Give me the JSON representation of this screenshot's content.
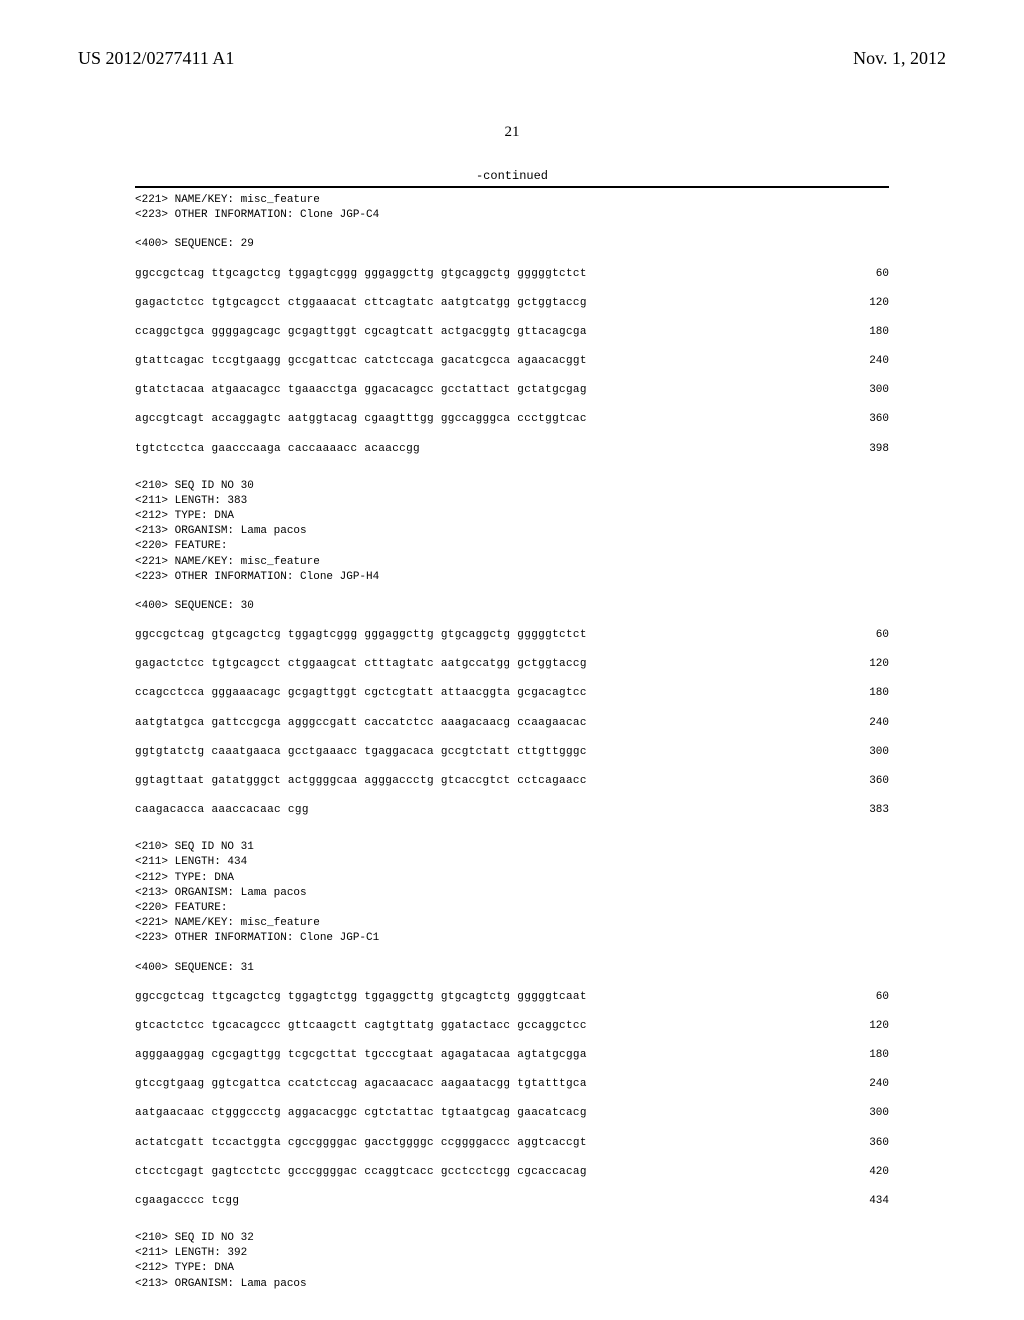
{
  "header": {
    "publication_number": "US 2012/0277411 A1",
    "publication_date": "Nov. 1, 2012"
  },
  "page_number": "21",
  "continued_label": "-continued",
  "blocks": [
    {
      "type": "meta_short",
      "lines": [
        "<221> NAME/KEY: misc_feature",
        "<223> OTHER INFORMATION: Clone JGP-C4"
      ]
    },
    {
      "type": "query",
      "text": "<400> SEQUENCE: 29"
    },
    {
      "type": "seq",
      "rows": [
        {
          "seq": "ggccgctcag ttgcagctcg tggagtcggg gggaggcttg gtgcaggctg gggggtctct",
          "n": "60"
        },
        {
          "seq": "gagactctcc tgtgcagcct ctggaaacat cttcagtatc aatgtcatgg gctggtaccg",
          "n": "120"
        },
        {
          "seq": "ccaggctgca ggggagcagc gcgagttggt cgcagtcatt actgacggtg gttacagcga",
          "n": "180"
        },
        {
          "seq": "gtattcagac tccgtgaagg gccgattcac catctccaga gacatcgcca agaacacggt",
          "n": "240"
        },
        {
          "seq": "gtatctacaa atgaacagcc tgaaacctga ggacacagcc gcctattact gctatgcgag",
          "n": "300"
        },
        {
          "seq": "agccgtcagt accaggagtc aatggtacag cgaagtttgg ggccagggca ccctggtcac",
          "n": "360"
        },
        {
          "seq": "tgtctcctca gaacccaaga caccaaaacc acaaccgg",
          "n": "398"
        }
      ]
    },
    {
      "type": "meta",
      "lines": [
        "<210> SEQ ID NO 30",
        "<211> LENGTH: 383",
        "<212> TYPE: DNA",
        "<213> ORGANISM: Lama pacos",
        "<220> FEATURE:",
        "<221> NAME/KEY: misc_feature",
        "<223> OTHER INFORMATION: Clone JGP-H4"
      ]
    },
    {
      "type": "query",
      "text": "<400> SEQUENCE: 30"
    },
    {
      "type": "seq",
      "rows": [
        {
          "seq": "ggccgctcag gtgcagctcg tggagtcggg gggaggcttg gtgcaggctg gggggtctct",
          "n": "60"
        },
        {
          "seq": "gagactctcc tgtgcagcct ctggaagcat ctttagtatc aatgccatgg gctggtaccg",
          "n": "120"
        },
        {
          "seq": "ccagcctcca gggaaacagc gcgagttggt cgctcgtatt attaacggta gcgacagtcc",
          "n": "180"
        },
        {
          "seq": "aatgtatgca gattccgcga agggccgatt caccatctcc aaagacaacg ccaagaacac",
          "n": "240"
        },
        {
          "seq": "ggtgtatctg caaatgaaca gcctgaaacc tgaggacaca gccgtctatt cttgttgggc",
          "n": "300"
        },
        {
          "seq": "ggtagttaat gatatgggct actggggcaa agggaccctg gtcaccgtct cctcagaacc",
          "n": "360"
        },
        {
          "seq": "caagacacca aaaccacaac cgg",
          "n": "383"
        }
      ]
    },
    {
      "type": "meta",
      "lines": [
        "<210> SEQ ID NO 31",
        "<211> LENGTH: 434",
        "<212> TYPE: DNA",
        "<213> ORGANISM: Lama pacos",
        "<220> FEATURE:",
        "<221> NAME/KEY: misc_feature",
        "<223> OTHER INFORMATION: Clone JGP-C1"
      ]
    },
    {
      "type": "query",
      "text": "<400> SEQUENCE: 31"
    },
    {
      "type": "seq",
      "rows": [
        {
          "seq": "ggccgctcag ttgcagctcg tggagtctgg tggaggcttg gtgcagtctg gggggtcaat",
          "n": "60"
        },
        {
          "seq": "gtcactctcc tgcacagccc gttcaagctt cagtgttatg ggatactacc gccaggctcc",
          "n": "120"
        },
        {
          "seq": "agggaaggag cgcgagttgg tcgcgcttat tgcccgtaat agagatacaa agtatgcgga",
          "n": "180"
        },
        {
          "seq": "gtccgtgaag ggtcgattca ccatctccag agacaacacc aagaatacgg tgtatttgca",
          "n": "240"
        },
        {
          "seq": "aatgaacaac ctgggccctg aggacacggc cgtctattac tgtaatgcag gaacatcacg",
          "n": "300"
        },
        {
          "seq": "actatcgatt tccactggta cgccggggac gacctggggc ccggggaccc aggtcaccgt",
          "n": "360"
        },
        {
          "seq": "ctcctcgagt gagtcctctc gcccggggac ccaggtcacc gcctcctcgg cgcaccacag",
          "n": "420"
        },
        {
          "seq": "cgaagacccc tcgg",
          "n": "434"
        }
      ]
    },
    {
      "type": "meta",
      "lines": [
        "<210> SEQ ID NO 32",
        "<211> LENGTH: 392",
        "<212> TYPE: DNA",
        "<213> ORGANISM: Lama pacos"
      ]
    }
  ]
}
